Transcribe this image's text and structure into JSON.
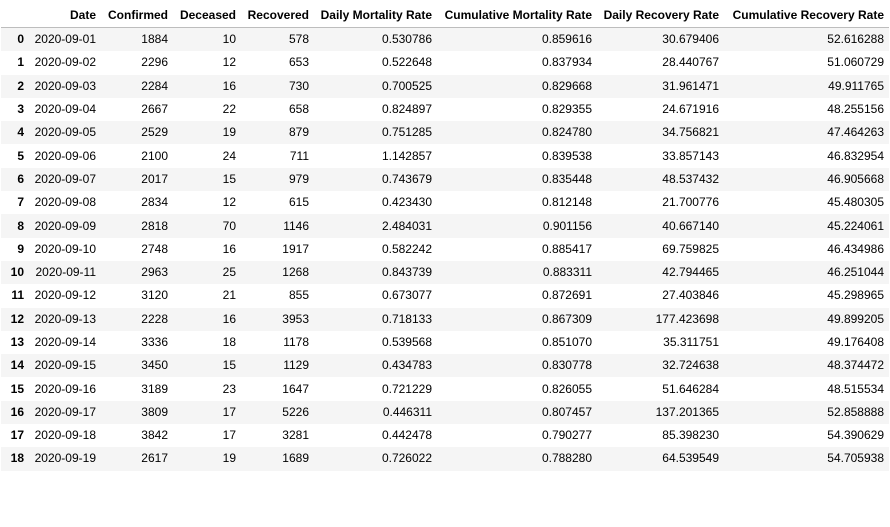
{
  "table": {
    "columns": [
      "",
      "Date",
      "Confirmed",
      "Deceased",
      "Recovered",
      "Daily Mortality Rate",
      "Cumulative Mortality Rate",
      "Daily Recovery Rate",
      "Cumulative Recovery Rate"
    ],
    "rows": [
      [
        "0",
        "2020-09-01",
        "1884",
        "10",
        "578",
        "0.530786",
        "0.859616",
        "30.679406",
        "52.616288"
      ],
      [
        "1",
        "2020-09-02",
        "2296",
        "12",
        "653",
        "0.522648",
        "0.837934",
        "28.440767",
        "51.060729"
      ],
      [
        "2",
        "2020-09-03",
        "2284",
        "16",
        "730",
        "0.700525",
        "0.829668",
        "31.961471",
        "49.911765"
      ],
      [
        "3",
        "2020-09-04",
        "2667",
        "22",
        "658",
        "0.824897",
        "0.829355",
        "24.671916",
        "48.255156"
      ],
      [
        "4",
        "2020-09-05",
        "2529",
        "19",
        "879",
        "0.751285",
        "0.824780",
        "34.756821",
        "47.464263"
      ],
      [
        "5",
        "2020-09-06",
        "2100",
        "24",
        "711",
        "1.142857",
        "0.839538",
        "33.857143",
        "46.832954"
      ],
      [
        "6",
        "2020-09-07",
        "2017",
        "15",
        "979",
        "0.743679",
        "0.835448",
        "48.537432",
        "46.905668"
      ],
      [
        "7",
        "2020-09-08",
        "2834",
        "12",
        "615",
        "0.423430",
        "0.812148",
        "21.700776",
        "45.480305"
      ],
      [
        "8",
        "2020-09-09",
        "2818",
        "70",
        "1146",
        "2.484031",
        "0.901156",
        "40.667140",
        "45.224061"
      ],
      [
        "9",
        "2020-09-10",
        "2748",
        "16",
        "1917",
        "0.582242",
        "0.885417",
        "69.759825",
        "46.434986"
      ],
      [
        "10",
        "2020-09-11",
        "2963",
        "25",
        "1268",
        "0.843739",
        "0.883311",
        "42.794465",
        "46.251044"
      ],
      [
        "11",
        "2020-09-12",
        "3120",
        "21",
        "855",
        "0.673077",
        "0.872691",
        "27.403846",
        "45.298965"
      ],
      [
        "12",
        "2020-09-13",
        "2228",
        "16",
        "3953",
        "0.718133",
        "0.867309",
        "177.423698",
        "49.899205"
      ],
      [
        "13",
        "2020-09-14",
        "3336",
        "18",
        "1178",
        "0.539568",
        "0.851070",
        "35.311751",
        "49.176408"
      ],
      [
        "14",
        "2020-09-15",
        "3450",
        "15",
        "1129",
        "0.434783",
        "0.830778",
        "32.724638",
        "48.374472"
      ],
      [
        "15",
        "2020-09-16",
        "3189",
        "23",
        "1647",
        "0.721229",
        "0.826055",
        "51.646284",
        "48.515534"
      ],
      [
        "16",
        "2020-09-17",
        "3809",
        "17",
        "5226",
        "0.446311",
        "0.807457",
        "137.201365",
        "52.858888"
      ],
      [
        "17",
        "2020-09-18",
        "3842",
        "17",
        "3281",
        "0.442478",
        "0.790277",
        "85.398230",
        "54.390629"
      ],
      [
        "18",
        "2020-09-19",
        "2617",
        "19",
        "1689",
        "0.726022",
        "0.788280",
        "64.539549",
        "54.705938"
      ]
    ]
  }
}
